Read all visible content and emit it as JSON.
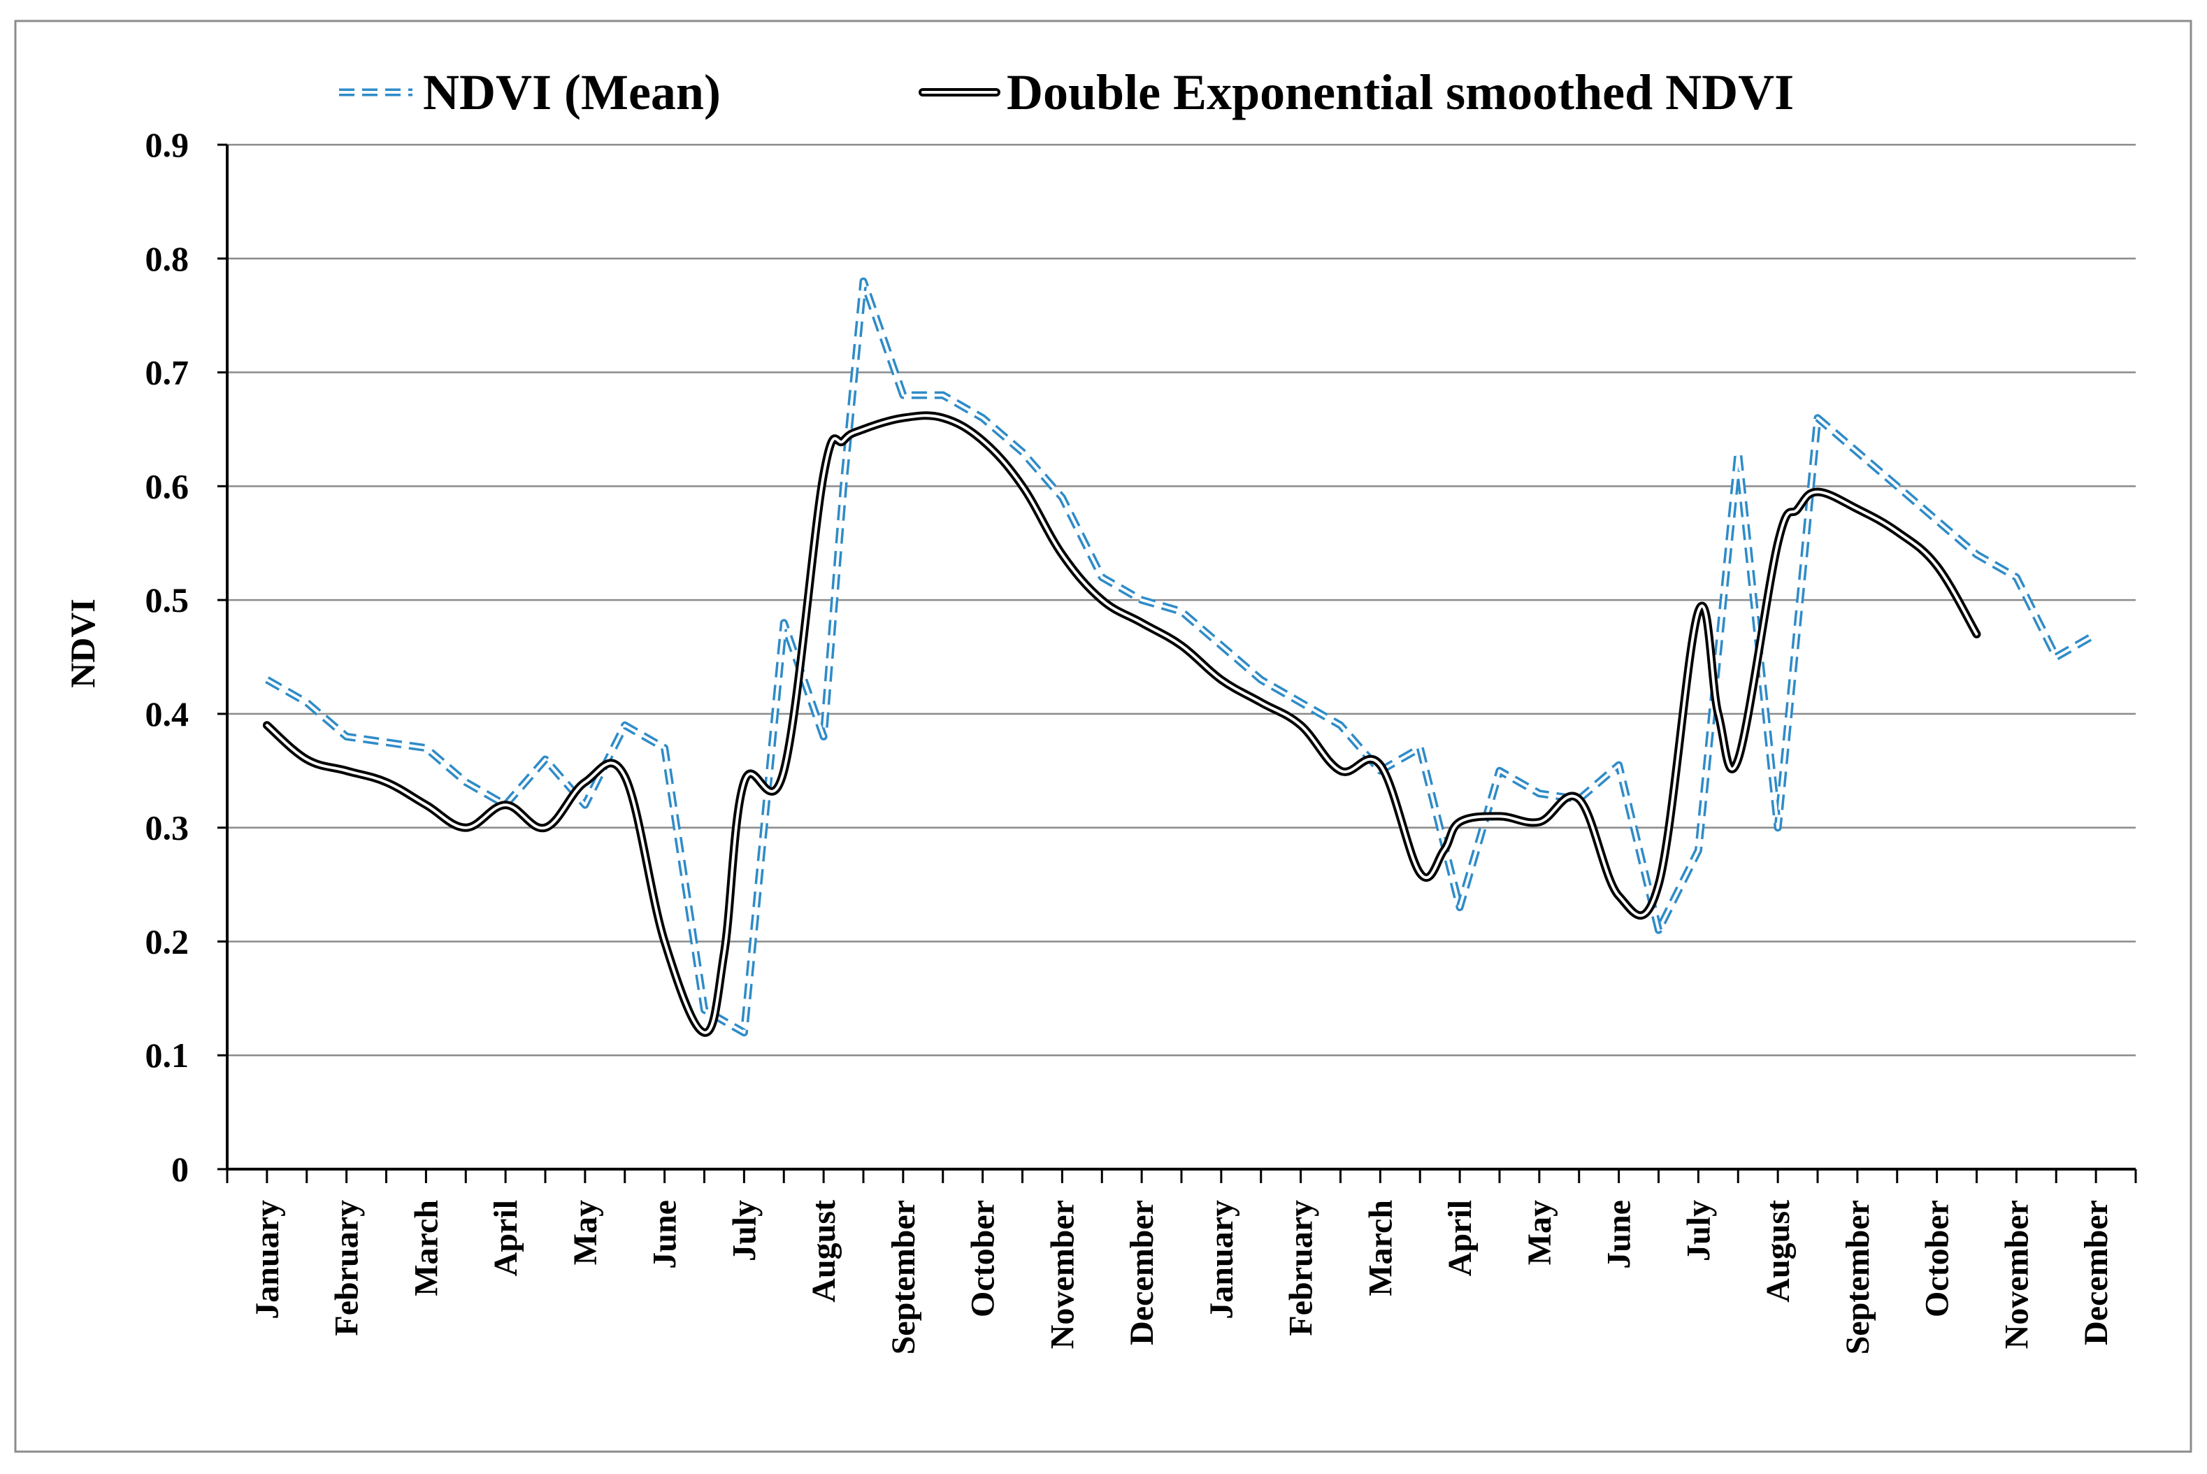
{
  "chart_data": {
    "type": "line",
    "title": "",
    "xlabel": "",
    "ylabel": "NDVI",
    "ylim": [
      0,
      0.9
    ],
    "yticks": [
      "0",
      "0.1",
      "0.2",
      "0.3",
      "0.4",
      "0.5",
      "0.6",
      "0.7",
      "0.8",
      "0.9"
    ],
    "grid": true,
    "legend_position": "top",
    "categories": [
      "January",
      "February",
      "March",
      "April",
      "May",
      "June",
      "July",
      "August",
      "September",
      "October",
      "November",
      "December",
      "January",
      "February",
      "March",
      "April",
      "May",
      "June",
      "July",
      "August",
      "September",
      "October",
      "November",
      "December"
    ],
    "series": [
      {
        "name": "NDVI (Mean)",
        "style": "dashed",
        "color": "#2E8BC8",
        "x": [
          0,
          0.5,
          1,
          1.5,
          2,
          2.5,
          3,
          3.5,
          4,
          4.5,
          5,
          5.5,
          6,
          6.5,
          7,
          7.25,
          7.5,
          8,
          8.5,
          9,
          9.5,
          10,
          10.5,
          11,
          11.5,
          12,
          12.5,
          13,
          13.5,
          14,
          14.5,
          15,
          15.5,
          16,
          16.5,
          17,
          17.5,
          18,
          18.5,
          19,
          19.25,
          19.5,
          20,
          20.5,
          21,
          21.5,
          22,
          22.5,
          23
        ],
        "values": [
          0.43,
          0.41,
          0.38,
          0.375,
          0.37,
          0.34,
          0.32,
          0.36,
          0.32,
          0.39,
          0.37,
          0.14,
          0.12,
          0.48,
          0.38,
          0.6,
          0.78,
          0.68,
          0.68,
          0.66,
          0.63,
          0.59,
          0.52,
          0.5,
          0.49,
          0.46,
          0.43,
          0.41,
          0.39,
          0.35,
          0.37,
          0.23,
          0.35,
          0.33,
          0.325,
          0.355,
          0.21,
          0.28,
          0.63,
          0.3,
          0.48,
          0.66,
          0.63,
          0.6,
          0.57,
          0.54,
          0.52,
          0.45,
          0.47
        ]
      },
      {
        "name": "Double Exponential smoothed NDVI",
        "style": "double",
        "color": "#000000",
        "x": [
          0,
          0.5,
          1,
          1.5,
          2,
          2.5,
          3,
          3.5,
          4,
          4.5,
          5,
          5.5,
          5.75,
          6,
          6.5,
          7,
          7.25,
          7.5,
          8,
          8.5,
          9,
          9.5,
          10,
          10.5,
          11,
          11.5,
          12,
          12.5,
          13,
          13.5,
          14,
          14.5,
          14.8,
          15,
          15.5,
          16,
          16.5,
          17,
          17.5,
          18,
          18.25,
          18.5,
          19,
          19.25,
          19.5,
          20,
          20.5,
          21,
          21.5
        ],
        "values": [
          0.39,
          0.36,
          0.35,
          0.34,
          0.32,
          0.3,
          0.32,
          0.3,
          0.34,
          0.345,
          0.2,
          0.12,
          0.19,
          0.34,
          0.35,
          0.61,
          0.64,
          0.65,
          0.66,
          0.66,
          0.64,
          0.6,
          0.54,
          0.5,
          0.48,
          0.46,
          0.43,
          0.41,
          0.39,
          0.35,
          0.355,
          0.26,
          0.28,
          0.305,
          0.31,
          0.305,
          0.325,
          0.24,
          0.25,
          0.49,
          0.4,
          0.36,
          0.55,
          0.58,
          0.595,
          0.58,
          0.56,
          0.53,
          0.47
        ]
      }
    ]
  }
}
